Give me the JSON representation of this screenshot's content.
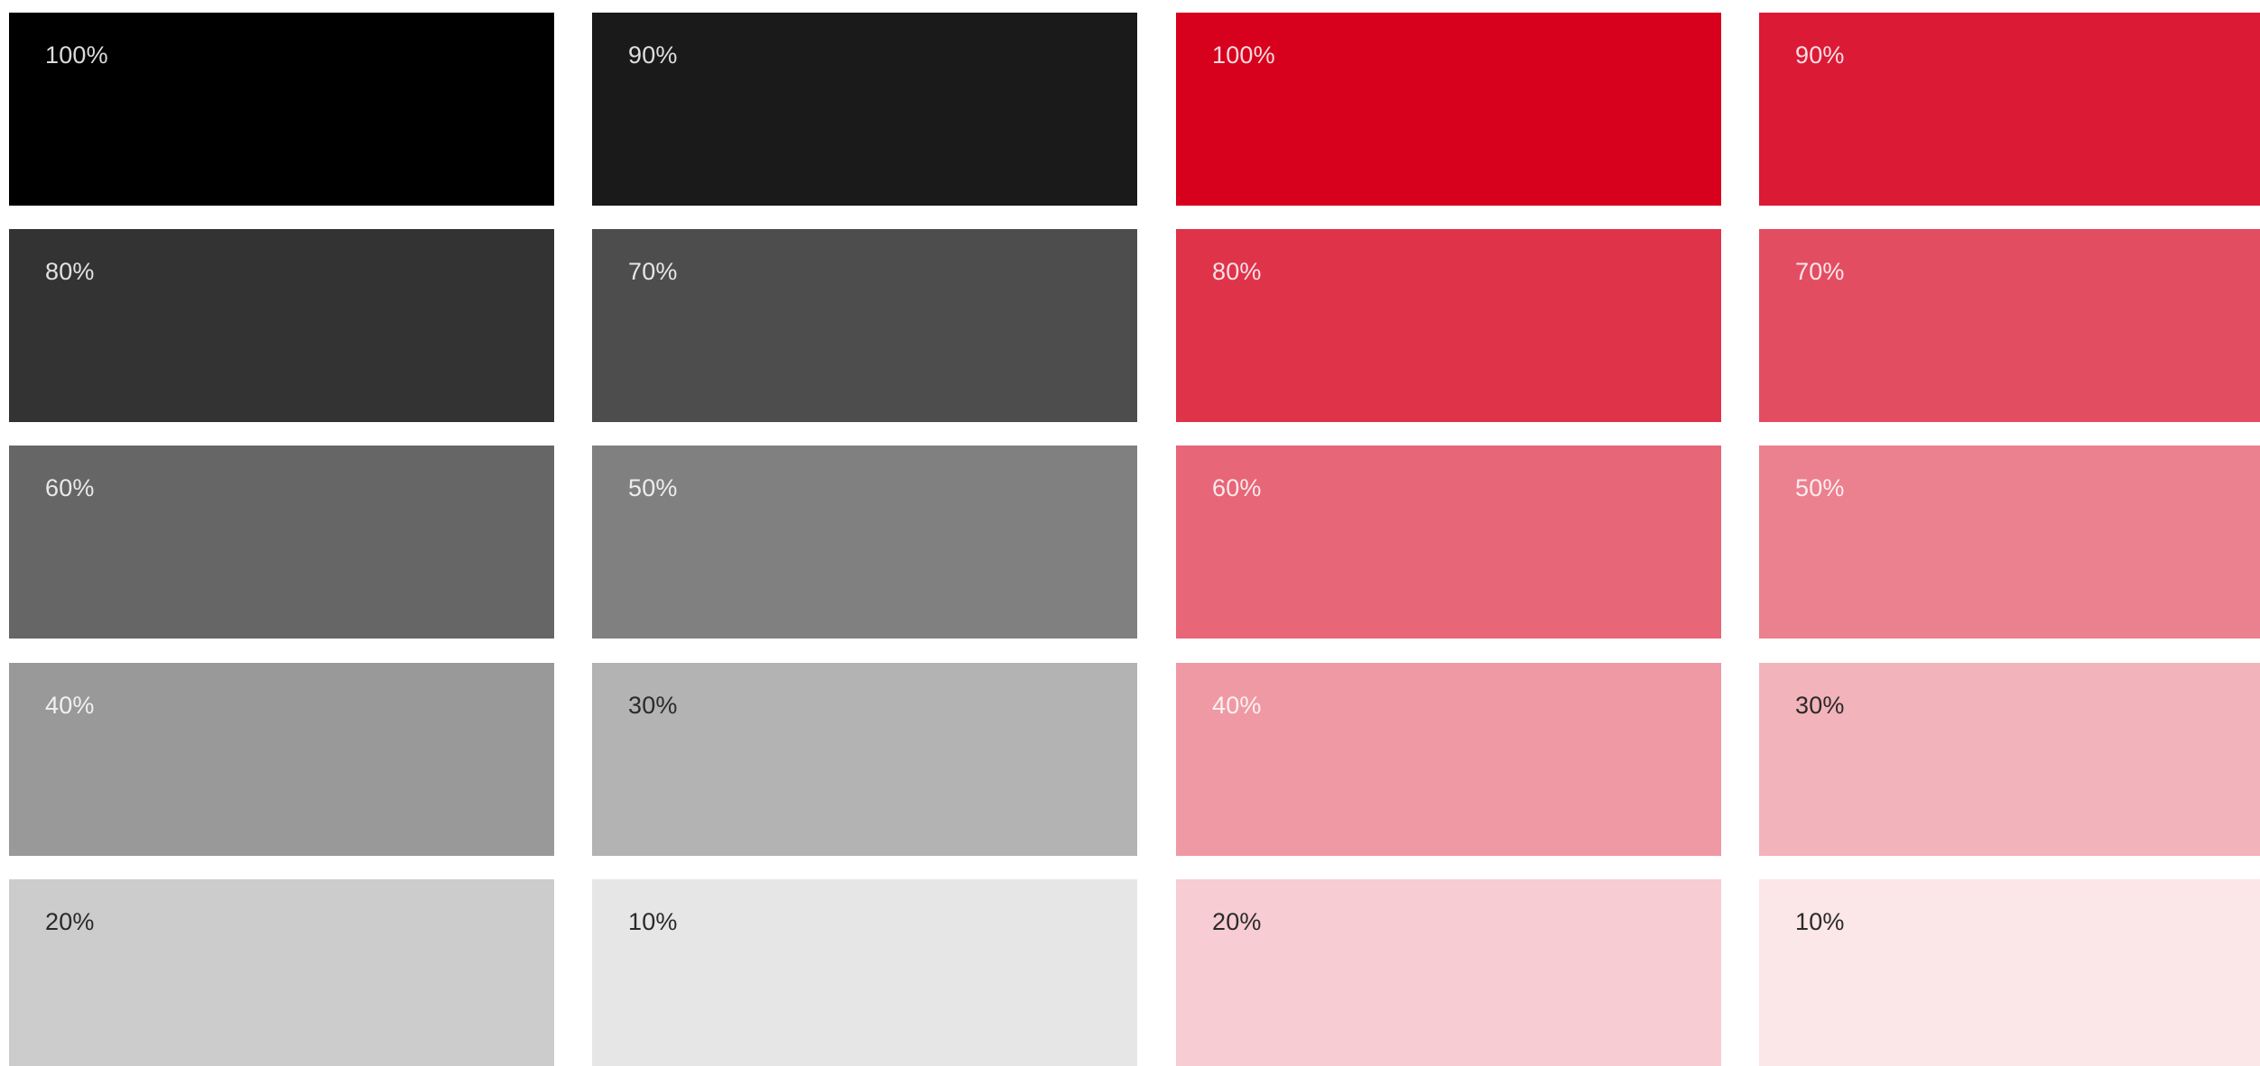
{
  "palettes": [
    {
      "swatches": [
        {
          "label": "100%",
          "color": "#000000",
          "text": "light"
        },
        {
          "label": "90%",
          "color": "#1a1a1a",
          "text": "light"
        },
        {
          "label": "80%",
          "color": "#333333",
          "text": "light"
        },
        {
          "label": "70%",
          "color": "#4d4d4d",
          "text": "light"
        },
        {
          "label": "60%",
          "color": "#666666",
          "text": "light"
        },
        {
          "label": "50%",
          "color": "#808080",
          "text": "light"
        },
        {
          "label": "40%",
          "color": "#999999",
          "text": "light"
        },
        {
          "label": "30%",
          "color": "#b3b3b3",
          "text": "dark"
        },
        {
          "label": "20%",
          "color": "#cccccc",
          "text": "dark"
        },
        {
          "label": "10%",
          "color": "#e6e6e6",
          "text": "dark"
        }
      ]
    },
    {
      "swatches": [
        {
          "label": "100%",
          "color": "#d7001d",
          "text": "light"
        },
        {
          "label": "90%",
          "color": "#db1a35",
          "text": "light"
        },
        {
          "label": "80%",
          "color": "#df334a",
          "text": "light"
        },
        {
          "label": "70%",
          "color": "#e34d61",
          "text": "light"
        },
        {
          "label": "60%",
          "color": "#e76677",
          "text": "light"
        },
        {
          "label": "50%",
          "color": "#eb808e",
          "text": "light"
        },
        {
          "label": "40%",
          "color": "#ef99a5",
          "text": "light"
        },
        {
          "label": "30%",
          "color": "#f3b3bb",
          "text": "dark"
        },
        {
          "label": "20%",
          "color": "#f7ccd2",
          "text": "dark"
        },
        {
          "label": "10%",
          "color": "#fbe6e8",
          "text": "dark"
        }
      ]
    }
  ]
}
